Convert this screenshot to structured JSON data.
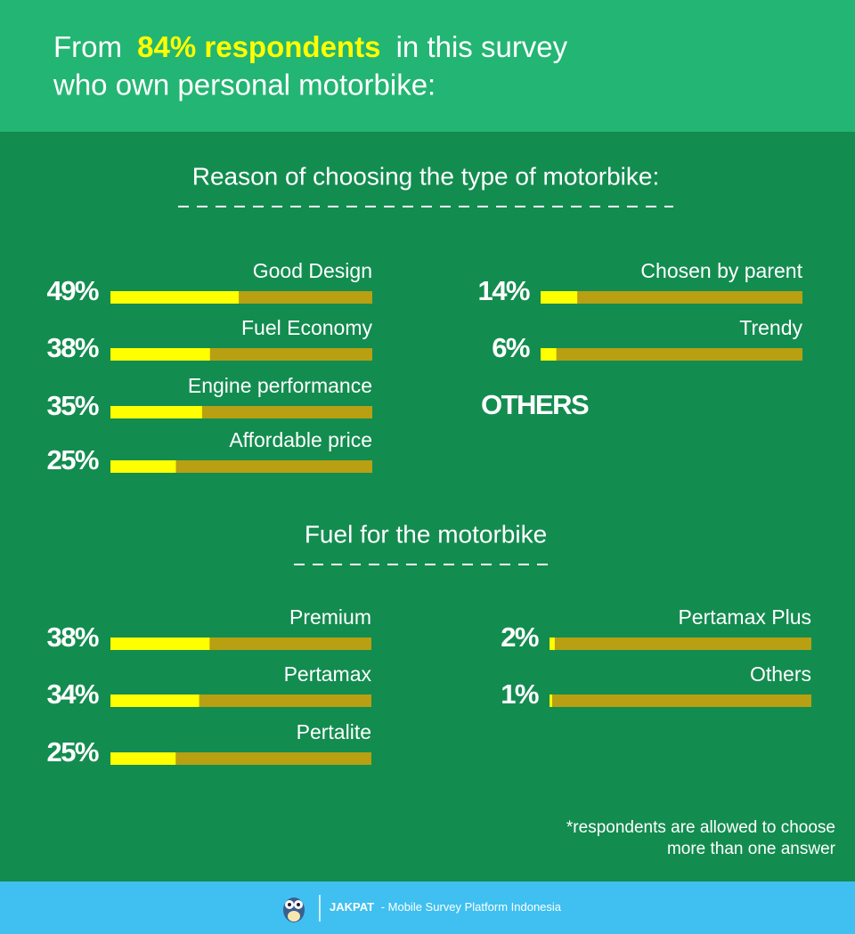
{
  "header": {
    "title_line1": [
      "From",
      "84% respondents",
      "in this survey"
    ],
    "title_line2": "who own personal motorbike:"
  },
  "chart_data": [
    {
      "type": "bar",
      "title": "Reason of choosing the type of motorbike:",
      "categories": [
        "Good Design",
        "Fuel Economy",
        "Engine performance",
        "Affordable price",
        "Chosen by parent",
        "Trendy"
      ],
      "values": [
        49,
        38,
        35,
        25,
        14,
        6
      ],
      "value_labels": [
        "49%",
        "38%",
        "35%",
        "25%",
        "14%",
        "6%"
      ],
      "others_label": "OTHERS",
      "xlim": [
        0,
        100
      ],
      "color": "#ffff00",
      "track_color": "#b8a012"
    },
    {
      "type": "bar",
      "title": "Fuel for the motorbike",
      "categories": [
        "Premium",
        "Pertamax",
        "Pertalite",
        "Pertamax Plus",
        "Others"
      ],
      "values": [
        38,
        34,
        25,
        2,
        1
      ],
      "value_labels": [
        "38%",
        "34%",
        "25%",
        "2%",
        "1%"
      ],
      "xlim": [
        0,
        100
      ],
      "color": "#ffff00",
      "track_color": "#b8a012"
    }
  ],
  "note": [
    "*respondents are allowed to choose",
    "more than one answer"
  ],
  "footer": {
    "brand": "JAKPAT",
    "tagline": "- Mobile Survey Platform Indonesia"
  }
}
